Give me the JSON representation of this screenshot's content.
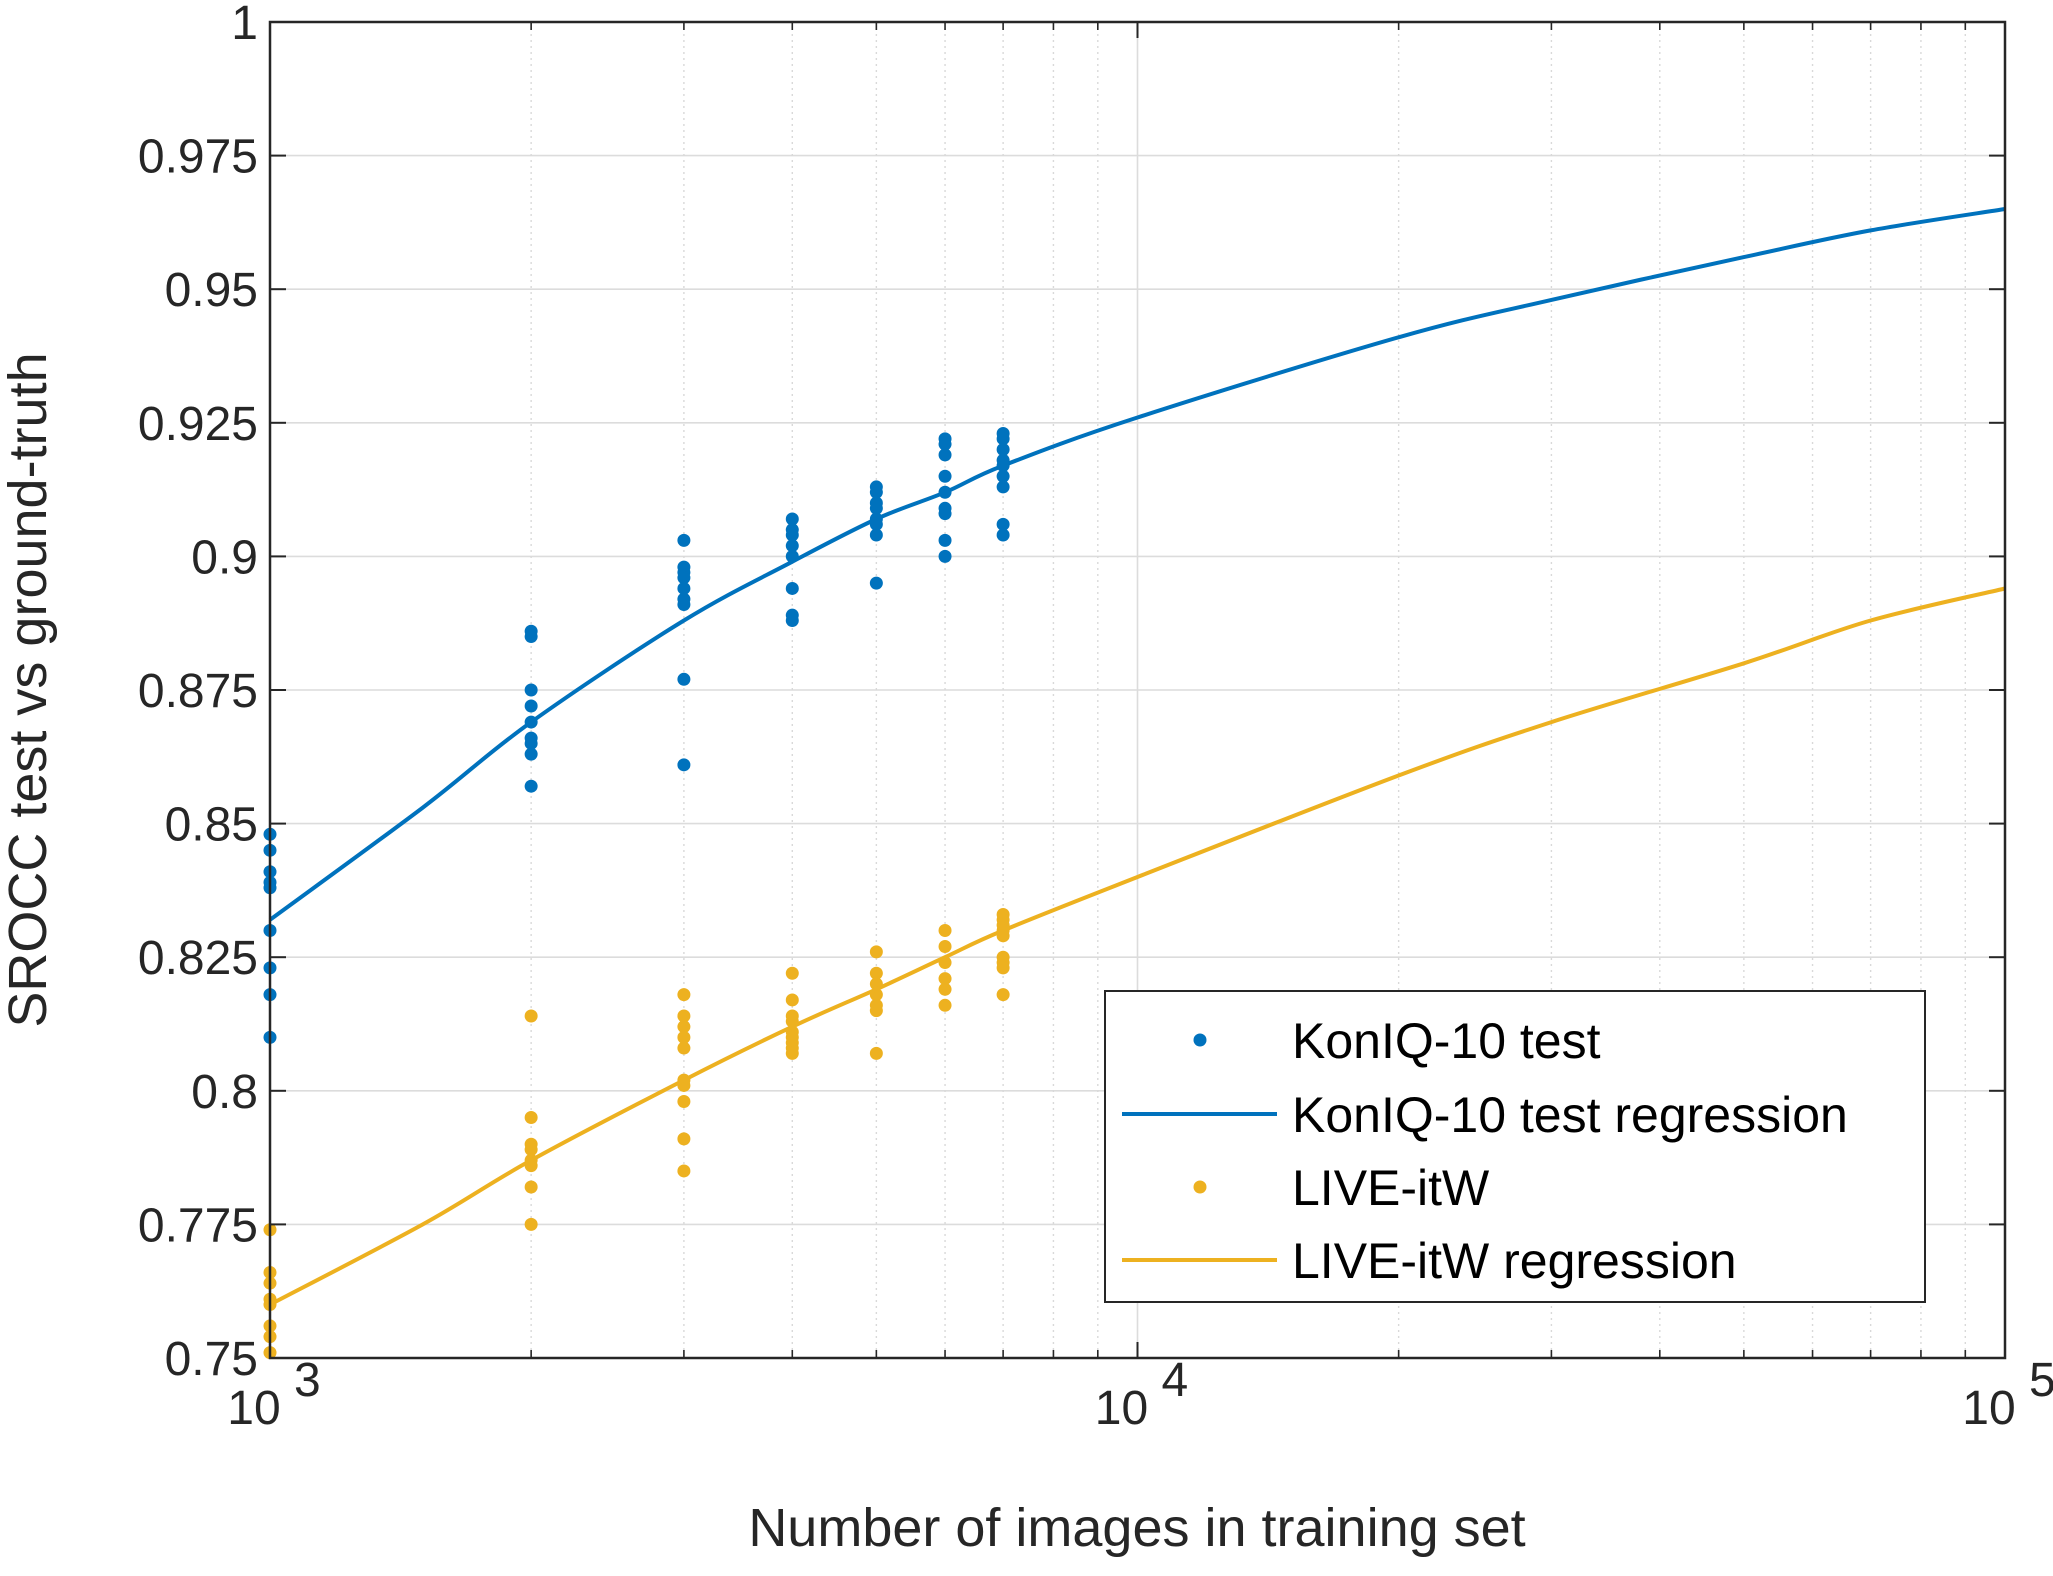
{
  "chart_data": {
    "type": "scatter",
    "title": "",
    "xlabel": "Number of images in training set",
    "ylabel": "SROCC test vs ground-truth",
    "xscale": "log",
    "xlim": [
      1000,
      100000
    ],
    "ylim": [
      0.75,
      1.0
    ],
    "grid": true,
    "legend_position": "bottom-right",
    "x_ticks": [
      {
        "value": 1000,
        "base": "10",
        "exp": "3"
      },
      {
        "value": 10000,
        "base": "10",
        "exp": "4"
      },
      {
        "value": 100000,
        "base": "10",
        "exp": "5"
      }
    ],
    "y_ticks": [
      {
        "value": 0.75,
        "label": "0.75"
      },
      {
        "value": 0.775,
        "label": "0.775"
      },
      {
        "value": 0.8,
        "label": "0.8"
      },
      {
        "value": 0.825,
        "label": "0.825"
      },
      {
        "value": 0.85,
        "label": "0.85"
      },
      {
        "value": 0.875,
        "label": "0.875"
      },
      {
        "value": 0.9,
        "label": "0.9"
      },
      {
        "value": 0.925,
        "label": "0.925"
      },
      {
        "value": 0.95,
        "label": "0.95"
      },
      {
        "value": 0.975,
        "label": "0.975"
      },
      {
        "value": 1.0,
        "label": "1"
      }
    ],
    "series": [
      {
        "name": "KonIQ-10 test",
        "kind": "points",
        "color": "#0072BD",
        "points": [
          [
            1000,
            0.848
          ],
          [
            1000,
            0.845
          ],
          [
            1000,
            0.841
          ],
          [
            1000,
            0.839
          ],
          [
            1000,
            0.838
          ],
          [
            1000,
            0.83
          ],
          [
            1000,
            0.823
          ],
          [
            1000,
            0.818
          ],
          [
            1000,
            0.81
          ],
          [
            2000,
            0.886
          ],
          [
            2000,
            0.885
          ],
          [
            2000,
            0.875
          ],
          [
            2000,
            0.872
          ],
          [
            2000,
            0.869
          ],
          [
            2000,
            0.866
          ],
          [
            2000,
            0.865
          ],
          [
            2000,
            0.863
          ],
          [
            2000,
            0.857
          ],
          [
            3000,
            0.903
          ],
          [
            3000,
            0.898
          ],
          [
            3000,
            0.897
          ],
          [
            3000,
            0.896
          ],
          [
            3000,
            0.894
          ],
          [
            3000,
            0.892
          ],
          [
            3000,
            0.891
          ],
          [
            3000,
            0.877
          ],
          [
            3000,
            0.861
          ],
          [
            4000,
            0.907
          ],
          [
            4000,
            0.905
          ],
          [
            4000,
            0.904
          ],
          [
            4000,
            0.902
          ],
          [
            4000,
            0.9
          ],
          [
            4000,
            0.894
          ],
          [
            4000,
            0.889
          ],
          [
            4000,
            0.888
          ],
          [
            5000,
            0.913
          ],
          [
            5000,
            0.912
          ],
          [
            5000,
            0.91
          ],
          [
            5000,
            0.909
          ],
          [
            5000,
            0.907
          ],
          [
            5000,
            0.906
          ],
          [
            5000,
            0.904
          ],
          [
            5000,
            0.895
          ],
          [
            6000,
            0.922
          ],
          [
            6000,
            0.921
          ],
          [
            6000,
            0.919
          ],
          [
            6000,
            0.915
          ],
          [
            6000,
            0.912
          ],
          [
            6000,
            0.909
          ],
          [
            6000,
            0.908
          ],
          [
            6000,
            0.903
          ],
          [
            6000,
            0.9
          ],
          [
            7000,
            0.923
          ],
          [
            7000,
            0.922
          ],
          [
            7000,
            0.92
          ],
          [
            7000,
            0.918
          ],
          [
            7000,
            0.917
          ],
          [
            7000,
            0.915
          ],
          [
            7000,
            0.913
          ],
          [
            7000,
            0.906
          ],
          [
            7000,
            0.904
          ]
        ]
      },
      {
        "name": "KonIQ-10 test regression",
        "kind": "line",
        "color": "#0072BD",
        "points": [
          [
            1000,
            0.832
          ],
          [
            1500,
            0.853
          ],
          [
            2000,
            0.869
          ],
          [
            3000,
            0.888
          ],
          [
            4000,
            0.899
          ],
          [
            5000,
            0.907
          ],
          [
            6000,
            0.912
          ],
          [
            7000,
            0.917
          ],
          [
            10000,
            0.926
          ],
          [
            20000,
            0.941
          ],
          [
            30000,
            0.948
          ],
          [
            50000,
            0.956
          ],
          [
            70000,
            0.961
          ],
          [
            100000,
            0.965
          ]
        ]
      },
      {
        "name": "LIVE-itW",
        "kind": "points",
        "color": "#EDB120",
        "points": [
          [
            1000,
            0.774
          ],
          [
            1000,
            0.766
          ],
          [
            1000,
            0.764
          ],
          [
            1000,
            0.761
          ],
          [
            1000,
            0.76
          ],
          [
            1000,
            0.756
          ],
          [
            1000,
            0.754
          ],
          [
            1000,
            0.751
          ],
          [
            2000,
            0.814
          ],
          [
            2000,
            0.795
          ],
          [
            2000,
            0.79
          ],
          [
            2000,
            0.789
          ],
          [
            2000,
            0.787
          ],
          [
            2000,
            0.786
          ],
          [
            2000,
            0.782
          ],
          [
            2000,
            0.775
          ],
          [
            3000,
            0.818
          ],
          [
            3000,
            0.814
          ],
          [
            3000,
            0.812
          ],
          [
            3000,
            0.81
          ],
          [
            3000,
            0.808
          ],
          [
            3000,
            0.802
          ],
          [
            3000,
            0.801
          ],
          [
            3000,
            0.798
          ],
          [
            3000,
            0.791
          ],
          [
            3000,
            0.785
          ],
          [
            4000,
            0.822
          ],
          [
            4000,
            0.817
          ],
          [
            4000,
            0.814
          ],
          [
            4000,
            0.813
          ],
          [
            4000,
            0.811
          ],
          [
            4000,
            0.81
          ],
          [
            4000,
            0.809
          ],
          [
            4000,
            0.808
          ],
          [
            4000,
            0.807
          ],
          [
            5000,
            0.826
          ],
          [
            5000,
            0.822
          ],
          [
            5000,
            0.82
          ],
          [
            5000,
            0.818
          ],
          [
            5000,
            0.816
          ],
          [
            5000,
            0.815
          ],
          [
            5000,
            0.807
          ],
          [
            6000,
            0.83
          ],
          [
            6000,
            0.827
          ],
          [
            6000,
            0.824
          ],
          [
            6000,
            0.821
          ],
          [
            6000,
            0.819
          ],
          [
            6000,
            0.816
          ],
          [
            7000,
            0.833
          ],
          [
            7000,
            0.832
          ],
          [
            7000,
            0.831
          ],
          [
            7000,
            0.83
          ],
          [
            7000,
            0.829
          ],
          [
            7000,
            0.825
          ],
          [
            7000,
            0.824
          ],
          [
            7000,
            0.823
          ],
          [
            7000,
            0.818
          ]
        ]
      },
      {
        "name": "LIVE-itW regression",
        "kind": "line",
        "color": "#EDB120",
        "points": [
          [
            1000,
            0.76
          ],
          [
            1500,
            0.775
          ],
          [
            2000,
            0.787
          ],
          [
            3000,
            0.802
          ],
          [
            4000,
            0.812
          ],
          [
            5000,
            0.819
          ],
          [
            6000,
            0.825
          ],
          [
            7000,
            0.83
          ],
          [
            10000,
            0.84
          ],
          [
            20000,
            0.859
          ],
          [
            30000,
            0.869
          ],
          [
            50000,
            0.88
          ],
          [
            70000,
            0.888
          ],
          [
            100000,
            0.894
          ]
        ]
      }
    ]
  }
}
